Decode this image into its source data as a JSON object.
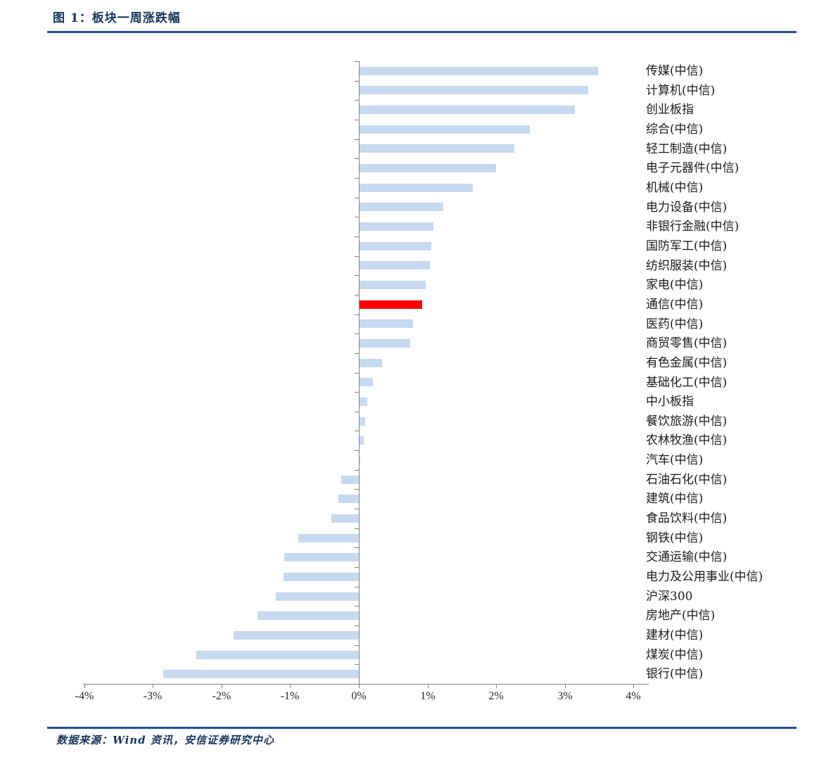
{
  "figure": {
    "title": "图 1：板块一周涨跌幅",
    "source_note": "数据来源：Wind 资讯，安信证券研究中心"
  },
  "colors": {
    "accent_rule": "#1B4EA5",
    "title_text": "#16365C",
    "bar_default": "#C5D9F1",
    "bar_highlight": "#FF0000",
    "axis": "#808080"
  },
  "chart_data": {
    "type": "bar",
    "orientation": "horizontal",
    "title": "板块一周涨跌幅",
    "xlabel": "",
    "ylabel": "",
    "xlim": [
      -4,
      4
    ],
    "grid": false,
    "legend": "none",
    "x_tick_labels": [
      "-4%",
      "-3%",
      "-2%",
      "-1%",
      "0%",
      "1%",
      "2%",
      "3%",
      "4%"
    ],
    "x_tick_values": [
      -4,
      -3,
      -2,
      -1,
      0,
      1,
      2,
      3,
      4
    ],
    "highlight_category": "通信(中信)",
    "highlight_index": 12,
    "categories": [
      "传媒(中信)",
      "计算机(中信)",
      "创业板指",
      "综合(中信)",
      "轻工制造(中信)",
      "电子元器件(中信)",
      "机械(中信)",
      "电力设备(中信)",
      "非银行金融(中信)",
      "国防军工(中信)",
      "纺织服装(中信)",
      "家电(中信)",
      "通信(中信)",
      "医药(中信)",
      "商贸零售(中信)",
      "有色金属(中信)",
      "基础化工(中信)",
      "中小板指",
      "餐饮旅游(中信)",
      "农林牧渔(中信)",
      "汽车(中信)",
      "石油石化(中信)",
      "建筑(中信)",
      "食品饮料(中信)",
      "钢铁(中信)",
      "交通运输(中信)",
      "电力及公用事业(中信)",
      "沪深300",
      "房地产(中信)",
      "建材(中信)",
      "煤炭(中信)",
      "银行(中信)"
    ],
    "values": [
      3.47,
      3.33,
      3.14,
      2.48,
      2.25,
      1.99,
      1.65,
      1.22,
      1.08,
      1.05,
      1.02,
      0.96,
      0.91,
      0.78,
      0.74,
      0.33,
      0.19,
      0.11,
      0.08,
      0.06,
      0.01,
      -0.26,
      -0.3,
      -0.4,
      -0.88,
      -1.09,
      -1.1,
      -1.21,
      -1.48,
      -1.82,
      -2.37,
      -2.85
    ]
  }
}
